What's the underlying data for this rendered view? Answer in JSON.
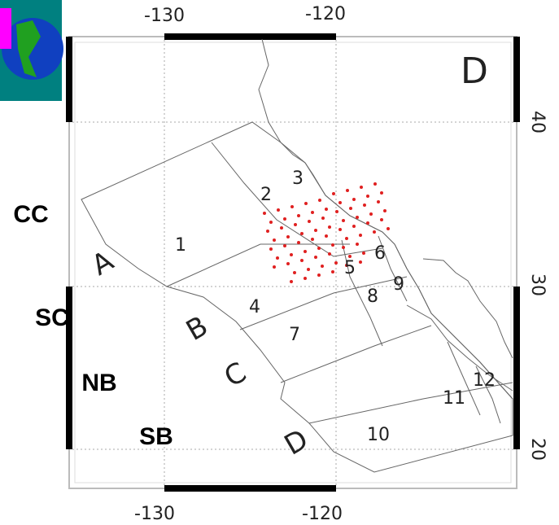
{
  "map": {
    "lon_labels": [
      "-130",
      "-120"
    ],
    "lat_labels": [
      "40",
      "30",
      "20"
    ],
    "corner_label": "D",
    "regions": [
      "A",
      "B",
      "C",
      "D"
    ],
    "zones": [
      "1",
      "2",
      "3",
      "4",
      "5",
      "6",
      "7",
      "8",
      "9",
      "10",
      "11",
      "12"
    ],
    "side_labels": [
      "CC",
      "SC",
      "NB",
      "SB"
    ]
  }
}
